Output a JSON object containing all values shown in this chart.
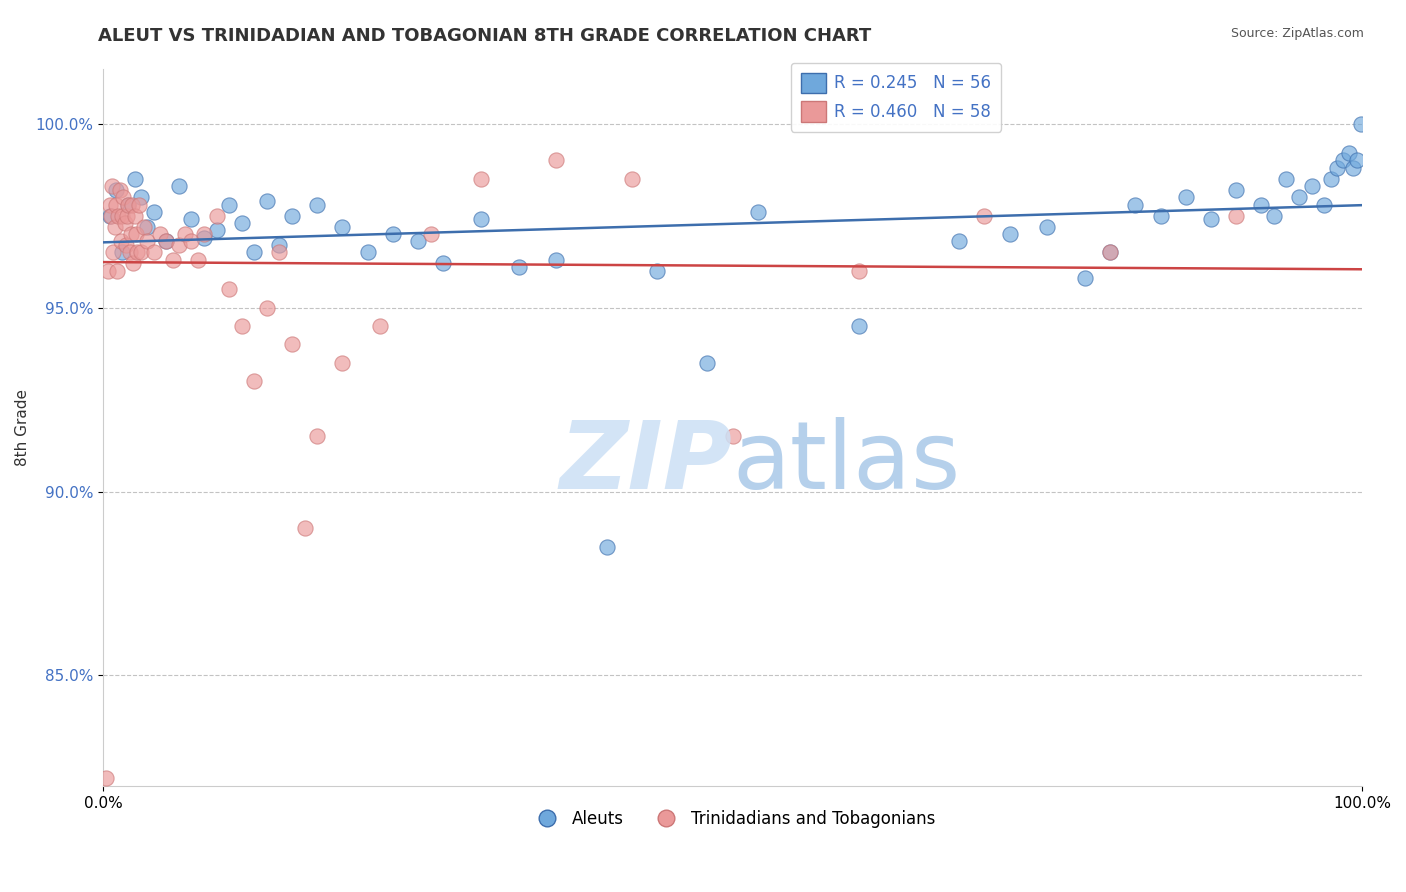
{
  "title": "ALEUT VS TRINIDADIAN AND TOBAGONIAN 8TH GRADE CORRELATION CHART",
  "source": "Source: ZipAtlas.com",
  "ylabel": "8th Grade",
  "xlim": [
    0.0,
    100.0
  ],
  "ylim": [
    82.0,
    101.5
  ],
  "yticks": [
    85.0,
    90.0,
    95.0,
    100.0
  ],
  "ytick_labels": [
    "85.0%",
    "90.0%",
    "95.0%",
    "100.0%"
  ],
  "blue_color": "#6fa8dc",
  "pink_color": "#ea9999",
  "blue_line_color": "#3d6ead",
  "pink_line_color": "#cc4444",
  "legend_blue_label": "R = 0.245   N = 56",
  "legend_pink_label": "R = 0.460   N = 58",
  "aleut_legend": "Aleuts",
  "tnt_legend": "Trinidadians and Tobagonians",
  "blue_x": [
    0.5,
    1.0,
    1.5,
    2.0,
    2.5,
    3.0,
    3.5,
    4.0,
    5.0,
    6.0,
    7.0,
    8.0,
    9.0,
    10.0,
    11.0,
    12.0,
    13.0,
    14.0,
    15.0,
    17.0,
    19.0,
    21.0,
    23.0,
    25.0,
    27.0,
    30.0,
    33.0,
    36.0,
    40.0,
    44.0,
    48.0,
    52.0,
    60.0,
    68.0,
    72.0,
    75.0,
    78.0,
    80.0,
    82.0,
    84.0,
    86.0,
    88.0,
    90.0,
    92.0,
    93.0,
    94.0,
    95.0,
    96.0,
    97.0,
    97.5,
    98.0,
    98.5,
    99.0,
    99.3,
    99.6,
    99.9
  ],
  "blue_y": [
    97.5,
    98.2,
    96.5,
    97.8,
    98.5,
    98.0,
    97.2,
    97.6,
    96.8,
    98.3,
    97.4,
    96.9,
    97.1,
    97.8,
    97.3,
    96.5,
    97.9,
    96.7,
    97.5,
    97.8,
    97.2,
    96.5,
    97.0,
    96.8,
    96.2,
    97.4,
    96.1,
    96.3,
    88.5,
    96.0,
    93.5,
    97.6,
    94.5,
    96.8,
    97.0,
    97.2,
    95.8,
    96.5,
    97.8,
    97.5,
    98.0,
    97.4,
    98.2,
    97.8,
    97.5,
    98.5,
    98.0,
    98.3,
    97.8,
    98.5,
    98.8,
    99.0,
    99.2,
    98.8,
    99.0,
    100.0
  ],
  "pink_x": [
    0.2,
    0.4,
    0.5,
    0.6,
    0.7,
    0.8,
    0.9,
    1.0,
    1.1,
    1.2,
    1.3,
    1.4,
    1.5,
    1.6,
    1.7,
    1.8,
    1.9,
    2.0,
    2.1,
    2.2,
    2.3,
    2.4,
    2.5,
    2.6,
    2.7,
    2.8,
    3.0,
    3.2,
    3.5,
    4.0,
    4.5,
    5.0,
    5.5,
    6.0,
    6.5,
    7.0,
    7.5,
    8.0,
    9.0,
    10.0,
    11.0,
    12.0,
    13.0,
    14.0,
    15.0,
    16.0,
    17.0,
    19.0,
    22.0,
    26.0,
    30.0,
    36.0,
    42.0,
    50.0,
    60.0,
    70.0,
    80.0,
    90.0
  ],
  "pink_y": [
    82.2,
    96.0,
    97.8,
    97.5,
    98.3,
    96.5,
    97.2,
    97.8,
    96.0,
    97.5,
    98.2,
    96.8,
    97.5,
    98.0,
    97.3,
    96.7,
    97.5,
    97.8,
    96.5,
    97.0,
    97.8,
    96.2,
    97.5,
    97.0,
    96.5,
    97.8,
    96.5,
    97.2,
    96.8,
    96.5,
    97.0,
    96.8,
    96.3,
    96.7,
    97.0,
    96.8,
    96.3,
    97.0,
    97.5,
    95.5,
    94.5,
    93.0,
    95.0,
    96.5,
    94.0,
    89.0,
    91.5,
    93.5,
    94.5,
    97.0,
    98.5,
    99.0,
    98.5,
    91.5,
    96.0,
    97.5,
    96.5,
    97.5
  ]
}
